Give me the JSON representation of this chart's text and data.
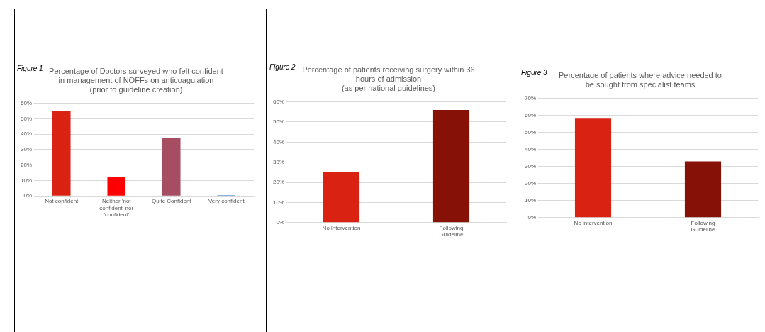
{
  "chart_data": [
    {
      "type": "bar",
      "title": "Percentage of Doctors surveyed who felt confident\nin management of NOFFs on anticoagulation\n(prior to guideline creation)",
      "annotations": [
        "Figure 1"
      ],
      "categories": [
        "Not confident",
        "Neither 'not confident' nor 'confident'",
        "Quite Confident",
        "Very confident"
      ],
      "values": [
        55,
        12.5,
        37.5,
        0.5
      ],
      "colors": [
        "#d92212",
        "#fe0000",
        "#a64d63",
        "#5b9bd5"
      ],
      "ylim": [
        0,
        60
      ],
      "yticks": [
        {
          "value": 0,
          "label": "0%"
        },
        {
          "value": 10,
          "label": "10%"
        },
        {
          "value": 20,
          "label": "20%"
        },
        {
          "value": 30,
          "label": "30%"
        },
        {
          "value": 40,
          "label": "40%"
        },
        {
          "value": 50,
          "label": "50%"
        },
        {
          "value": 60,
          "label": "60%"
        }
      ],
      "grid": "y",
      "legend": false
    },
    {
      "type": "bar",
      "title": "Percentage of patients receiving surgery within 36\nhours of admission\n(as per national guidelines)",
      "annotations": [
        "Figure 2"
      ],
      "categories": [
        "No intervention",
        "Following Guideline"
      ],
      "values": [
        25,
        56
      ],
      "colors": [
        "#d92212",
        "#861106"
      ],
      "ylim": [
        0,
        60
      ],
      "yticks": [
        {
          "value": 0,
          "label": "0%"
        },
        {
          "value": 10,
          "label": "10%"
        },
        {
          "value": 20,
          "label": "20%"
        },
        {
          "value": 30,
          "label": "30%"
        },
        {
          "value": 40,
          "label": "40%"
        },
        {
          "value": 50,
          "label": "50%"
        },
        {
          "value": 60,
          "label": "60%"
        }
      ],
      "grid": "y",
      "legend": false
    },
    {
      "type": "bar",
      "title": "Percentage of patients where advice needed to\nbe sought from specialist teams",
      "annotations": [
        "Figure 3"
      ],
      "categories": [
        "No intervention",
        "Following Guideline"
      ],
      "values": [
        58,
        33
      ],
      "colors": [
        "#d92212",
        "#861106"
      ],
      "ylim": [
        0,
        70
      ],
      "yticks": [
        {
          "value": 0,
          "label": "0%"
        },
        {
          "value": 10,
          "label": "10%"
        },
        {
          "value": 20,
          "label": "20%"
        },
        {
          "value": 30,
          "label": "30%"
        },
        {
          "value": 40,
          "label": "40%"
        },
        {
          "value": 50,
          "label": "50%"
        },
        {
          "value": 60,
          "label": "60%"
        },
        {
          "value": 70,
          "label": "70%"
        }
      ],
      "grid": "y",
      "legend": false
    }
  ]
}
